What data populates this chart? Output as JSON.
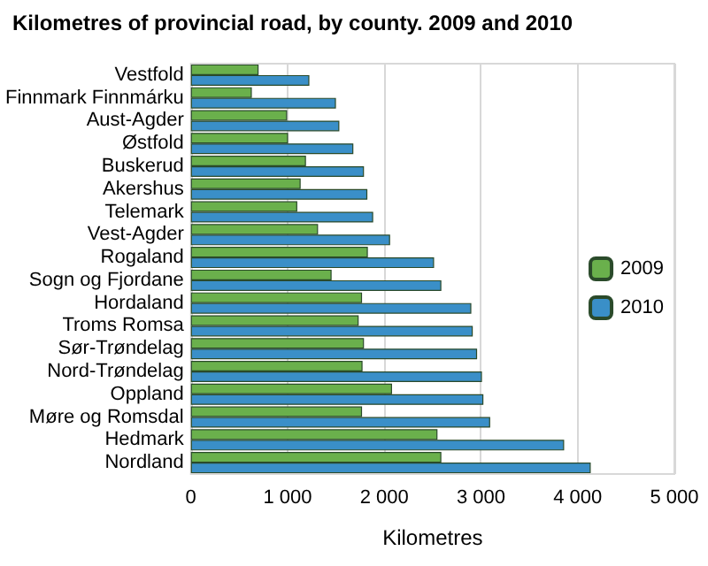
{
  "chart_data": {
    "type": "bar",
    "orientation": "horizontal",
    "title": "Kilometres of provincial road, by county. 2009 and 2010",
    "xlabel": "Kilometres",
    "categories": [
      "Vestfold",
      "Finnmark Finnmárku",
      "Aust-Agder",
      "Østfold",
      "Buskerud",
      "Akershus",
      "Telemark",
      "Vest-Agder",
      "Rogaland",
      "Sogn og Fjordane",
      "Hordaland",
      "Troms Romsa",
      "Sør-Trøndelag",
      "Nord-Trøndelag",
      "Oppland",
      "Møre og Romsdal",
      "Hedmark",
      "Nordland"
    ],
    "series": [
      {
        "name": "2009",
        "color": "#6ab04c",
        "values": [
          700,
          630,
          995,
          1005,
          1190,
          1135,
          1100,
          1315,
          1830,
          1455,
          1770,
          1735,
          1790,
          1775,
          2080,
          1770,
          2550,
          2590
        ]
      },
      {
        "name": "2010",
        "color": "#3a8fc8",
        "values": [
          1225,
          1500,
          1535,
          1680,
          1790,
          1825,
          1885,
          2060,
          2515,
          2590,
          2900,
          2915,
          2960,
          3010,
          3025,
          3095,
          3860,
          4135
        ]
      }
    ],
    "xlim": [
      0,
      5000
    ],
    "xticks": [
      {
        "value": 0,
        "label": "0"
      },
      {
        "value": 1000,
        "label": "1 000"
      },
      {
        "value": 2000,
        "label": "2 000"
      },
      {
        "value": 3000,
        "label": "3 000"
      },
      {
        "value": 4000,
        "label": "4 000"
      },
      {
        "value": 5000,
        "label": "5 000"
      }
    ],
    "grid": "x",
    "legend": "right"
  }
}
